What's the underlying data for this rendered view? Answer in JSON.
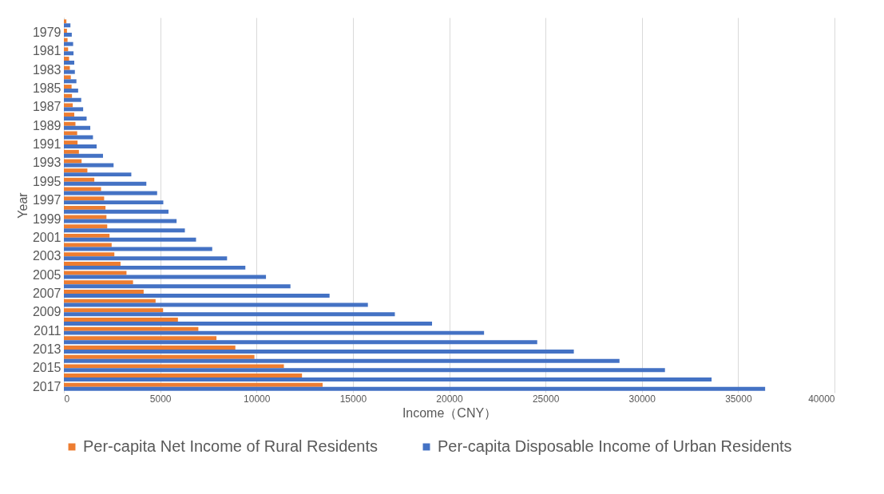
{
  "chart_data": {
    "type": "bar",
    "orientation": "horizontal",
    "xlabel": "Income（CNY）",
    "ylabel": "Year",
    "categories": [
      null,
      "1979",
      null,
      "1981",
      null,
      "1983",
      null,
      "1985",
      null,
      "1987",
      null,
      "1989",
      null,
      "1991",
      null,
      "1993",
      null,
      "1995",
      null,
      "1997",
      null,
      "1999",
      null,
      "2001",
      null,
      "2003",
      null,
      "2005",
      null,
      "2007",
      null,
      "2009",
      null,
      "2011",
      null,
      "2013",
      null,
      "2015",
      null,
      "2017"
    ],
    "series": [
      {
        "name": "Per-capita Net Income of Rural Residents",
        "color": "#ed7d31",
        "values": [
          130,
          160,
          190,
          220,
          270,
          310,
          360,
          400,
          420,
          460,
          540,
          600,
          690,
          710,
          780,
          920,
          1220,
          1580,
          1930,
          2090,
          2160,
          2210,
          2250,
          2370,
          2480,
          2620,
          2940,
          3250,
          3590,
          4140,
          4760,
          5150,
          5920,
          6980,
          7920,
          8900,
          9890,
          11420,
          12360,
          13430
        ]
      },
      {
        "name": "Per-capita Disposable Income of Urban Residents",
        "color": "#4472c4",
        "values": [
          340,
          410,
          480,
          500,
          540,
          570,
          650,
          740,
          900,
          1000,
          1180,
          1370,
          1510,
          1700,
          2030,
          2580,
          3500,
          4280,
          4840,
          5160,
          5430,
          5850,
          6280,
          6860,
          7700,
          8470,
          9420,
          10490,
          11760,
          13790,
          15780,
          17180,
          19110,
          21810,
          24570,
          26470,
          28840,
          31200,
          33620,
          36400
        ]
      }
    ],
    "xlim": [
      0,
      40000
    ],
    "xticks": [
      0,
      5000,
      10000,
      15000,
      20000,
      25000,
      30000,
      35000,
      40000
    ],
    "grid": "x",
    "legend": "bottom"
  }
}
